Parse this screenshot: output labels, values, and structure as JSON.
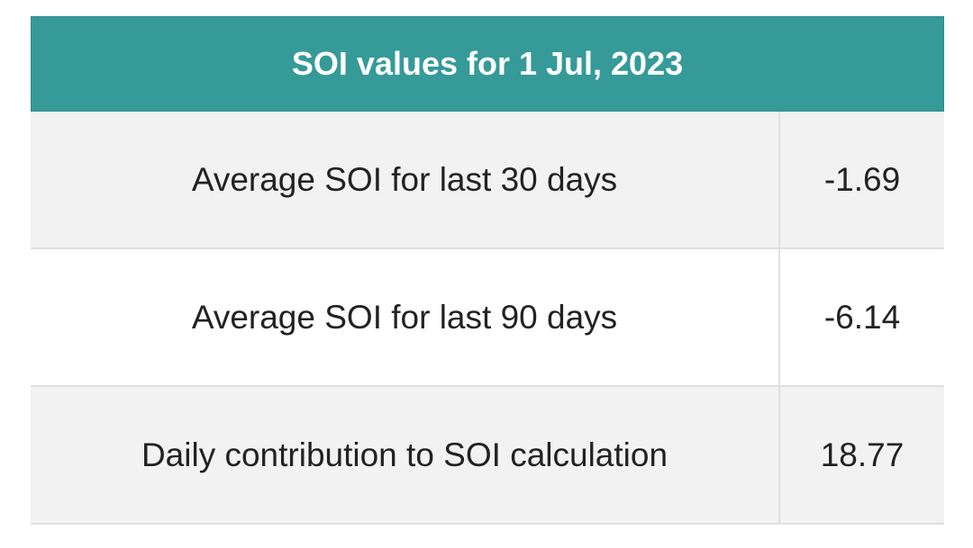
{
  "table": {
    "title": "SOI values for 1 Jul, 2023",
    "rows": [
      [
        "Average SOI for last 30 days",
        "-1.69"
      ],
      [
        "Average SOI for last 90 days",
        "-6.14"
      ],
      [
        "Daily contribution to SOI calculation",
        "18.77"
      ]
    ]
  }
}
